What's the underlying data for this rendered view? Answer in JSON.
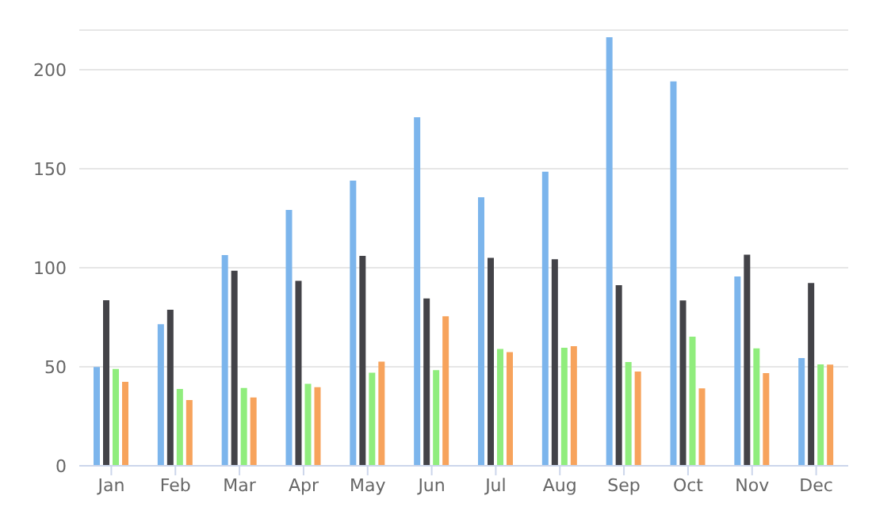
{
  "chart_data": {
    "type": "bar",
    "categories": [
      "Jan",
      "Feb",
      "Mar",
      "Apr",
      "May",
      "Jun",
      "Jul",
      "Aug",
      "Sep",
      "Oct",
      "Nov",
      "Dec"
    ],
    "series": [
      {
        "color": "#7cb5ec",
        "values": [
          49.9,
          71.5,
          106.4,
          129.2,
          144.0,
          176.0,
          135.6,
          148.5,
          216.4,
          194.1,
          95.6,
          54.4
        ]
      },
      {
        "color": "#434348",
        "values": [
          83.6,
          78.8,
          98.5,
          93.4,
          106.0,
          84.5,
          105.0,
          104.3,
          91.2,
          83.5,
          106.6,
          92.3
        ]
      },
      {
        "color": "#90ed7d",
        "values": [
          48.9,
          38.8,
          39.3,
          41.4,
          47.0,
          48.3,
          59.0,
          59.6,
          52.4,
          65.2,
          59.3,
          51.2
        ]
      },
      {
        "color": "#f7a35c",
        "values": [
          42.4,
          33.2,
          34.5,
          39.7,
          52.6,
          75.5,
          57.4,
          60.4,
          47.6,
          39.1,
          46.8,
          51.1
        ]
      }
    ],
    "ylim": [
      0,
      220
    ],
    "yticks": [
      0,
      50,
      100,
      150,
      200
    ],
    "grid": "y",
    "legend": false
  }
}
